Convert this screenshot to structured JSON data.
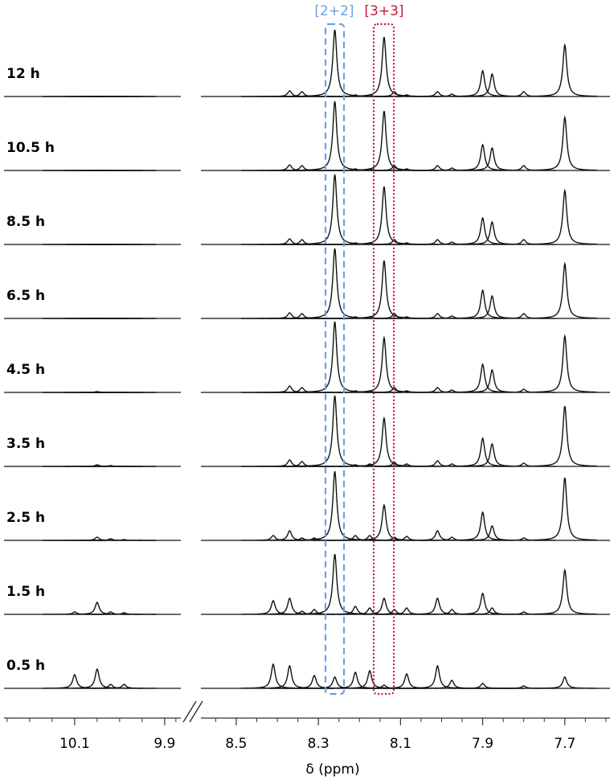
{
  "chart_data": {
    "type": "spectrum",
    "xlabel": "δ (ppm)",
    "xlim": [
      10.257,
      9.864
    ],
    "xticks": [
      10.1,
      9.9
    ],
    "xminorticks": [
      10.25,
      10.2,
      10.15,
      10.05,
      10.0,
      9.95,
      9.875
    ],
    "x2lim": [
      8.586,
      7.59
    ],
    "x2ticks": [
      8.5,
      8.3,
      8.1,
      7.9,
      7.7
    ],
    "x2minorticks": [
      8.55,
      8.45,
      8.4,
      8.35,
      8.25,
      8.2,
      8.15,
      8.05,
      8.0,
      7.95,
      7.85,
      7.8,
      7.75,
      7.65,
      7.6
    ],
    "color": "#111111",
    "x": [
      10.1,
      10.05,
      10.02,
      9.99,
      8.41,
      8.37,
      8.34,
      8.31,
      8.26,
      8.21,
      8.175,
      8.14,
      8.115,
      8.085,
      8.01,
      7.975,
      7.9,
      7.877,
      7.8,
      7.7
    ],
    "series": [
      {
        "name": "12 h",
        "values": [
          0,
          0,
          0,
          0,
          0,
          7,
          6,
          0,
          83,
          2,
          2,
          74,
          6,
          2,
          6,
          3,
          32,
          28,
          6,
          64
        ]
      },
      {
        "name": "10.5 h",
        "values": [
          0,
          0,
          0,
          0,
          0,
          7,
          6,
          0,
          86,
          2,
          2,
          74,
          6,
          2,
          6,
          3,
          32,
          28,
          6,
          66
        ]
      },
      {
        "name": "8.5 h",
        "values": [
          0,
          0,
          0,
          0,
          0,
          7,
          6,
          0,
          87,
          2,
          2,
          72,
          6,
          2,
          6,
          3,
          33,
          28,
          6,
          67
        ]
      },
      {
        "name": "6.5 h",
        "values": [
          0,
          0,
          0,
          0,
          0,
          7,
          6,
          0,
          87,
          2,
          2,
          72,
          6,
          2,
          6,
          3,
          35,
          28,
          6,
          68
        ]
      },
      {
        "name": "4.5 h",
        "values": [
          0,
          1,
          0,
          0,
          0,
          8,
          6,
          0,
          88,
          2,
          2,
          68,
          6,
          2,
          6,
          3,
          35,
          28,
          4,
          70
        ]
      },
      {
        "name": "3.5 h",
        "values": [
          0,
          2,
          1,
          0,
          0,
          8,
          6,
          0,
          88,
          2,
          3,
          60,
          5,
          3,
          7,
          3,
          35,
          28,
          4,
          75
        ]
      },
      {
        "name": "2.5 h",
        "values": [
          0,
          4,
          2,
          1,
          6,
          12,
          3,
          3,
          86,
          6,
          6,
          44,
          4,
          5,
          12,
          4,
          35,
          18,
          3,
          78
        ]
      },
      {
        "name": "1.5 h",
        "values": [
          3,
          15,
          3,
          2,
          17,
          20,
          4,
          6,
          75,
          10,
          8,
          20,
          6,
          8,
          20,
          6,
          26,
          8,
          3,
          55
        ]
      },
      {
        "name": "0.5 h",
        "values": [
          17,
          24,
          5,
          5,
          30,
          28,
          0,
          16,
          14,
          20,
          22,
          4,
          0,
          18,
          28,
          10,
          6,
          0,
          3,
          14
        ]
      }
    ],
    "annotations": [
      {
        "text": "[2+2]",
        "color": "#6d9eeb"
      },
      {
        "text": "[3+3]",
        "color": "#c0183a"
      }
    ]
  }
}
